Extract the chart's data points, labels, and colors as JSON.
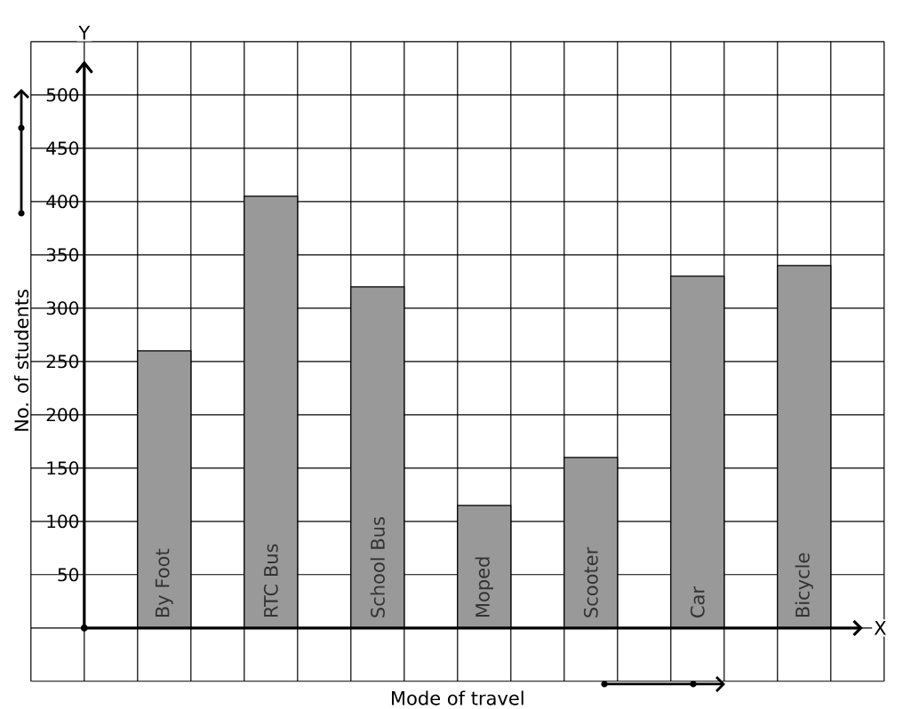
{
  "chart_data": {
    "type": "bar",
    "xlabel": "Mode of travel",
    "ylabel": "No. of students",
    "categories": [
      "By Foot",
      "RTC Bus",
      "School Bus",
      "Moped",
      "Scooter",
      "Car",
      "Bicycle"
    ],
    "values": [
      260,
      405,
      320,
      115,
      160,
      330,
      340
    ],
    "color": "#999999",
    "ylim": [
      -50,
      550
    ],
    "yticks": [
      50,
      100,
      150,
      200,
      250,
      300,
      350,
      400,
      450,
      500
    ],
    "grid": true,
    "annotations": [
      "Y",
      "X"
    ]
  }
}
